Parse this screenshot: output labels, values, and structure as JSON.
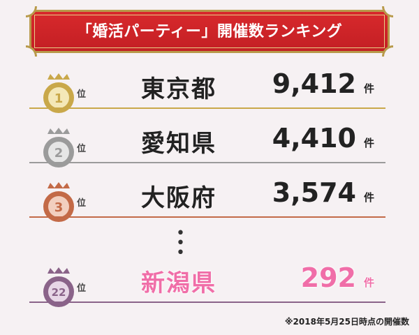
{
  "title": "「婚活パーティー」開催数ランキング",
  "colors": {
    "banner_red": "#c31f24",
    "gold": "#c9a84a",
    "silver": "#9b9b9b",
    "bronze": "#c36a47",
    "purple": "#8a6389",
    "highlight_pink": "#f06ea8"
  },
  "rank_suffix": "位",
  "count_unit": "件",
  "rows": [
    {
      "rank": "1",
      "prefecture": "東京都",
      "count": "9,412"
    },
    {
      "rank": "2",
      "prefecture": "愛知県",
      "count": "4,410"
    },
    {
      "rank": "3",
      "prefecture": "大阪府",
      "count": "3,574"
    },
    {
      "rank": "22",
      "prefecture": "新潟県",
      "count": "292"
    }
  ],
  "ellipsis": "⋮",
  "footnote": "※2018年5月25日時点の開催数"
}
